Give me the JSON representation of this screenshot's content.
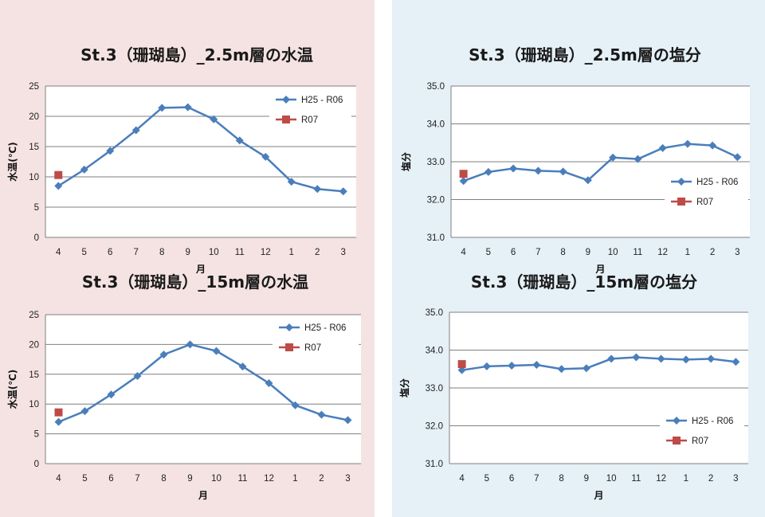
{
  "panels": [
    {
      "id": "temperature",
      "background": "#f5e3e3"
    },
    {
      "id": "salinity",
      "background": "#e5f0f7"
    }
  ],
  "colors": {
    "series_main": "#4a7ebb",
    "series_current": "#be4b48",
    "grid": "#7f7f7f",
    "plot_bg": "#ffffff"
  },
  "chart_data": [
    {
      "type": "line",
      "title": "St.3（珊瑚島）_2.5m層の水温",
      "xlabel": "月",
      "ylabel": "水温(℃)",
      "categories": [
        "4",
        "5",
        "6",
        "7",
        "8",
        "9",
        "10",
        "11",
        "12",
        "1",
        "2",
        "3"
      ],
      "ylim": [
        0,
        25
      ],
      "yticks": [
        "0",
        "5",
        "10",
        "15",
        "20",
        "25"
      ],
      "grid": true,
      "legend_position": "top-right",
      "series": [
        {
          "name": "H25 - R06",
          "marker": "diamond",
          "values": [
            8.5,
            11.2,
            14.3,
            17.7,
            21.4,
            21.5,
            19.5,
            16.0,
            13.3,
            9.2,
            8.0,
            7.6
          ]
        },
        {
          "name": "R07",
          "marker": "square",
          "values": [
            10.3,
            null,
            null,
            null,
            null,
            null,
            null,
            null,
            null,
            null,
            null,
            null
          ]
        }
      ]
    },
    {
      "type": "line",
      "title": "St.3（珊瑚島）_15m層の水温",
      "xlabel": "月",
      "ylabel": "水温(℃)",
      "categories": [
        "4",
        "5",
        "6",
        "7",
        "8",
        "9",
        "10",
        "11",
        "12",
        "1",
        "2",
        "3"
      ],
      "ylim": [
        0,
        25
      ],
      "yticks": [
        "0",
        "5",
        "10",
        "15",
        "20",
        "25"
      ],
      "grid": true,
      "legend_position": "top-right",
      "series": [
        {
          "name": "H25 - R06",
          "marker": "diamond",
          "values": [
            7.0,
            8.8,
            11.6,
            14.7,
            18.3,
            20.0,
            18.9,
            16.3,
            13.5,
            9.8,
            8.2,
            7.3
          ]
        },
        {
          "name": "R07",
          "marker": "square",
          "values": [
            8.6,
            null,
            null,
            null,
            null,
            null,
            null,
            null,
            null,
            null,
            null,
            null
          ]
        }
      ]
    },
    {
      "type": "line",
      "title": "St.3（珊瑚島）_2.5m層の塩分",
      "xlabel": "月",
      "ylabel": "塩分",
      "categories": [
        "4",
        "5",
        "6",
        "7",
        "8",
        "9",
        "10",
        "11",
        "12",
        "1",
        "2",
        "3"
      ],
      "ylim": [
        31.0,
        35.0
      ],
      "yticks": [
        "31.0",
        "32.0",
        "33.0",
        "34.0",
        "35.0"
      ],
      "grid": true,
      "legend_position": "right",
      "series": [
        {
          "name": "H25 - R06",
          "marker": "diamond",
          "values": [
            32.49,
            32.73,
            32.82,
            32.76,
            32.74,
            32.51,
            33.11,
            33.07,
            33.36,
            33.47,
            33.43,
            33.12
          ]
        },
        {
          "name": "R07",
          "marker": "square",
          "values": [
            32.68,
            null,
            null,
            null,
            null,
            null,
            null,
            null,
            null,
            null,
            null,
            null
          ]
        }
      ]
    },
    {
      "type": "line",
      "title": "St.3（珊瑚島）_15m層の塩分",
      "xlabel": "月",
      "ylabel": "塩分",
      "categories": [
        "4",
        "5",
        "6",
        "7",
        "8",
        "9",
        "10",
        "11",
        "12",
        "1",
        "2",
        "3"
      ],
      "ylim": [
        31.0,
        35.0
      ],
      "yticks": [
        "31.0",
        "32.0",
        "33.0",
        "34.0",
        "35.0"
      ],
      "grid": true,
      "legend_position": "bottom-right",
      "series": [
        {
          "name": "H25 - R06",
          "marker": "diamond",
          "values": [
            33.47,
            33.57,
            33.59,
            33.61,
            33.5,
            33.52,
            33.77,
            33.81,
            33.77,
            33.75,
            33.77,
            33.69
          ]
        },
        {
          "name": "R07",
          "marker": "square",
          "values": [
            33.63,
            null,
            null,
            null,
            null,
            null,
            null,
            null,
            null,
            null,
            null,
            null
          ]
        }
      ]
    }
  ]
}
